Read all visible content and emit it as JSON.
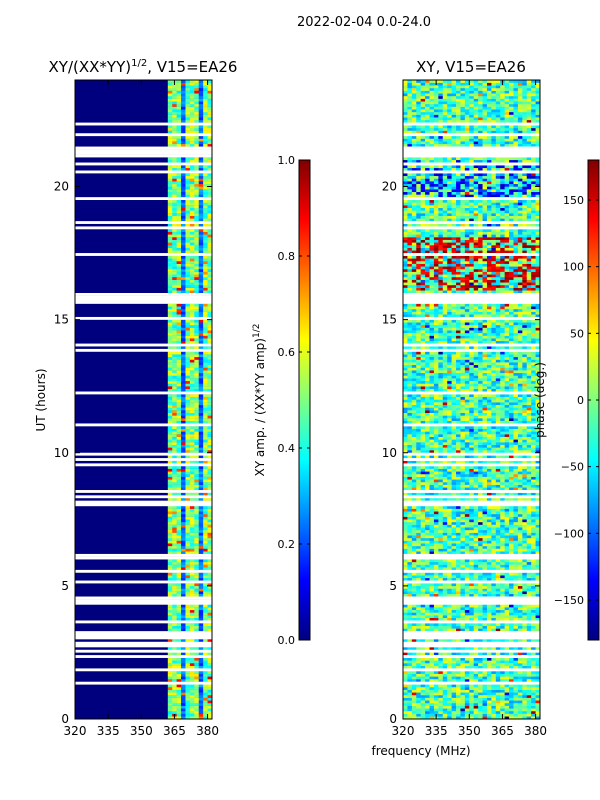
{
  "figure_title": "2022-02-04 0.0-24.0",
  "colors": {
    "jet_low": "#00007f",
    "jet_high": "#7f0000",
    "gap": "#ffffff"
  },
  "chart_data": [
    {
      "type": "heatmap",
      "title_main": "XY/(XX*YY)",
      "title_sup": "1/2",
      "title_tail": ", V15=EA26",
      "ylabel": "UT (hours)",
      "xlim": [
        320,
        382
      ],
      "ylim": [
        0,
        24
      ],
      "xticks": [
        "320",
        "335",
        "350",
        "365",
        "380"
      ],
      "xtick_values": [
        320,
        335,
        350,
        365,
        380
      ],
      "yticks": [
        "0",
        "5",
        "10",
        "15",
        "20"
      ],
      "ytick_values": [
        0,
        5,
        10,
        15,
        20
      ],
      "colorbar": {
        "label_main": "XY amp. / (XX*YY amp)",
        "label_sup": "1/2",
        "range": [
          0.0,
          1.0
        ],
        "ticks": [
          "0.0",
          "0.2",
          "0.4",
          "0.6",
          "0.8",
          "1.0"
        ],
        "tick_values": [
          0.0,
          0.2,
          0.4,
          0.6,
          0.8,
          1.0
        ]
      }
    },
    {
      "type": "heatmap",
      "title_main": "XY, V15=EA26",
      "xlabel": "frequency (MHz)",
      "xlim": [
        320,
        382
      ],
      "ylim": [
        0,
        24
      ],
      "xticks": [
        "320",
        "335",
        "350",
        "365",
        "380"
      ],
      "xtick_values": [
        320,
        335,
        350,
        365,
        380
      ],
      "yticks": [
        "0",
        "5",
        "10",
        "15",
        "20"
      ],
      "ytick_values": [
        0,
        5,
        10,
        15,
        20
      ],
      "colorbar": {
        "label_main": "phase (deg.)",
        "range": [
          -180,
          180
        ],
        "ticks": [
          "−150",
          "−100",
          "−50",
          "0",
          "50",
          "100",
          "150"
        ],
        "tick_values": [
          -150,
          -100,
          -50,
          0,
          50,
          100,
          150
        ]
      }
    }
  ]
}
